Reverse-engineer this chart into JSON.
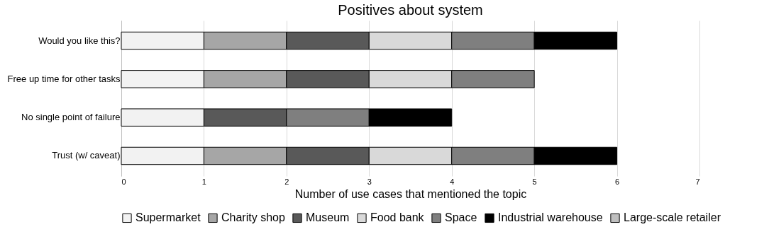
{
  "chart_data": {
    "type": "bar",
    "orientation": "horizontal",
    "stacked": true,
    "title": "Positives about system",
    "xlabel": "Number of use cases that mentioned the topic",
    "categories": [
      "Would you like this?",
      "Free up time for other tasks",
      "No single point of failure",
      "Trust (w/ caveat)"
    ],
    "series": [
      {
        "name": "Supermarket",
        "color": "#f2f2f2",
        "values": [
          1,
          1,
          1,
          1
        ]
      },
      {
        "name": "Charity shop",
        "color": "#a6a6a6",
        "values": [
          1,
          1,
          0,
          1
        ]
      },
      {
        "name": "Museum",
        "color": "#595959",
        "values": [
          1,
          1,
          1,
          1
        ]
      },
      {
        "name": "Food bank",
        "color": "#d9d9d9",
        "values": [
          1,
          1,
          0,
          1
        ]
      },
      {
        "name": "Space",
        "color": "#7f7f7f",
        "values": [
          1,
          1,
          1,
          1
        ]
      },
      {
        "name": "Industrial warehouse",
        "color": "#000000",
        "values": [
          1,
          0,
          1,
          1
        ]
      },
      {
        "name": "Large-scale retailer",
        "color": "#bfbfbf",
        "values": [
          0,
          0,
          0,
          0
        ]
      }
    ],
    "xlim": [
      0,
      7
    ],
    "xticks": [
      0,
      1,
      2,
      3,
      4,
      5,
      6,
      7
    ],
    "grid": "x",
    "legend": "bottom"
  }
}
